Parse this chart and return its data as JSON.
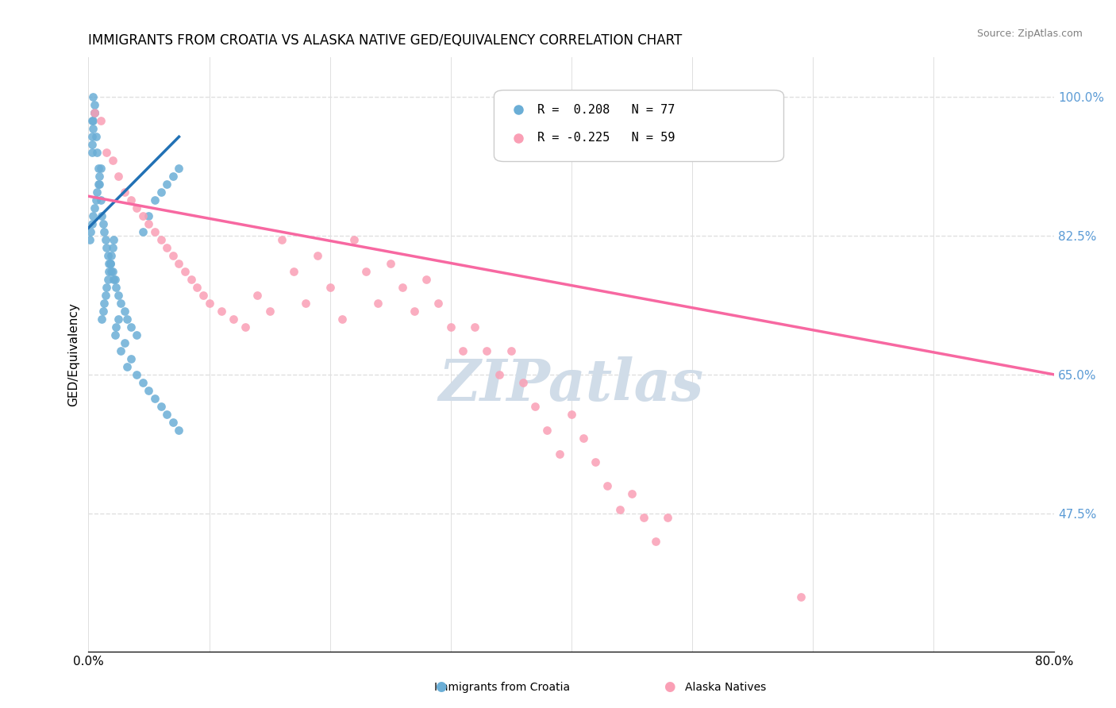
{
  "title": "IMMIGRANTS FROM CROATIA VS ALASKA NATIVE GED/EQUIVALENCY CORRELATION CHART",
  "source": "Source: ZipAtlas.com",
  "xlabel_bottom": "",
  "ylabel": "GED/Equivalency",
  "xlim": [
    0.0,
    0.8
  ],
  "ylim": [
    0.3,
    1.05
  ],
  "xticks": [
    0.0,
    0.1,
    0.2,
    0.3,
    0.4,
    0.5,
    0.6,
    0.7,
    0.8
  ],
  "xticklabels": [
    "0.0%",
    "",
    "",
    "",
    "",
    "",
    "",
    "",
    "80.0%"
  ],
  "yticks_right": [
    1.0,
    0.825,
    0.65,
    0.475
  ],
  "ytick_labels_right": [
    "100.0%",
    "82.5%",
    "65.0%",
    "47.5%"
  ],
  "legend_r1": "R =  0.208   N = 77",
  "legend_r2": "R = -0.225   N = 59",
  "color_blue": "#6baed6",
  "color_blue_line": "#2171b5",
  "color_pink": "#fa9fb5",
  "color_pink_line": "#f768a1",
  "watermark": "ZIPatlas",
  "legend_label1": "Immigrants from Croatia",
  "legend_label2": "Alaska Natives",
  "blue_scatter_x": [
    0.003,
    0.004,
    0.005,
    0.006,
    0.007,
    0.008,
    0.009,
    0.01,
    0.011,
    0.012,
    0.013,
    0.014,
    0.015,
    0.016,
    0.017,
    0.018,
    0.019,
    0.02,
    0.021,
    0.022,
    0.023,
    0.025,
    0.027,
    0.03,
    0.032,
    0.035,
    0.04,
    0.045,
    0.05,
    0.055,
    0.06,
    0.065,
    0.07,
    0.075,
    0.001,
    0.002,
    0.003,
    0.004,
    0.005,
    0.006,
    0.007,
    0.008,
    0.009,
    0.01,
    0.011,
    0.012,
    0.013,
    0.014,
    0.015,
    0.016,
    0.017,
    0.018,
    0.019,
    0.02,
    0.021,
    0.022,
    0.023,
    0.025,
    0.027,
    0.03,
    0.032,
    0.035,
    0.04,
    0.045,
    0.05,
    0.055,
    0.06,
    0.065,
    0.07,
    0.075,
    0.003,
    0.003,
    0.003,
    0.004,
    0.004,
    0.005,
    0.005
  ],
  "blue_scatter_y": [
    0.97,
    1.0,
    0.98,
    0.95,
    0.93,
    0.91,
    0.89,
    0.87,
    0.85,
    0.84,
    0.83,
    0.82,
    0.81,
    0.8,
    0.79,
    0.79,
    0.78,
    0.78,
    0.77,
    0.77,
    0.76,
    0.75,
    0.74,
    0.73,
    0.72,
    0.71,
    0.7,
    0.83,
    0.85,
    0.87,
    0.88,
    0.89,
    0.9,
    0.91,
    0.82,
    0.83,
    0.84,
    0.85,
    0.86,
    0.87,
    0.88,
    0.89,
    0.9,
    0.91,
    0.72,
    0.73,
    0.74,
    0.75,
    0.76,
    0.77,
    0.78,
    0.79,
    0.8,
    0.81,
    0.82,
    0.7,
    0.71,
    0.72,
    0.68,
    0.69,
    0.66,
    0.67,
    0.65,
    0.64,
    0.63,
    0.62,
    0.61,
    0.6,
    0.59,
    0.58,
    0.93,
    0.94,
    0.95,
    0.96,
    0.97,
    0.98,
    0.99
  ],
  "pink_scatter_x": [
    0.005,
    0.01,
    0.015,
    0.02,
    0.025,
    0.03,
    0.035,
    0.04,
    0.045,
    0.05,
    0.055,
    0.06,
    0.065,
    0.07,
    0.075,
    0.08,
    0.085,
    0.09,
    0.095,
    0.1,
    0.11,
    0.12,
    0.13,
    0.14,
    0.15,
    0.16,
    0.17,
    0.18,
    0.19,
    0.2,
    0.21,
    0.22,
    0.23,
    0.24,
    0.25,
    0.26,
    0.27,
    0.28,
    0.29,
    0.3,
    0.31,
    0.32,
    0.33,
    0.34,
    0.35,
    0.36,
    0.37,
    0.38,
    0.39,
    0.4,
    0.41,
    0.42,
    0.43,
    0.44,
    0.45,
    0.46,
    0.47,
    0.48,
    0.59
  ],
  "pink_scatter_y": [
    0.98,
    0.97,
    0.93,
    0.92,
    0.9,
    0.88,
    0.87,
    0.86,
    0.85,
    0.84,
    0.83,
    0.82,
    0.81,
    0.8,
    0.79,
    0.78,
    0.77,
    0.76,
    0.75,
    0.74,
    0.73,
    0.72,
    0.71,
    0.75,
    0.73,
    0.82,
    0.78,
    0.74,
    0.8,
    0.76,
    0.72,
    0.82,
    0.78,
    0.74,
    0.79,
    0.76,
    0.73,
    0.77,
    0.74,
    0.71,
    0.68,
    0.71,
    0.68,
    0.65,
    0.68,
    0.64,
    0.61,
    0.58,
    0.55,
    0.6,
    0.57,
    0.54,
    0.51,
    0.48,
    0.5,
    0.47,
    0.44,
    0.47,
    0.37
  ],
  "blue_trend_x": [
    0.0,
    0.075
  ],
  "blue_trend_y": [
    0.835,
    0.95
  ],
  "pink_trend_x": [
    0.0,
    0.8
  ],
  "pink_trend_y": [
    0.875,
    0.65
  ],
  "grid_color": "#e0e0e0",
  "title_fontsize": 12,
  "axis_label_color": "#5b9bd5",
  "watermark_color": "#d0dce8",
  "bg_color": "#ffffff"
}
